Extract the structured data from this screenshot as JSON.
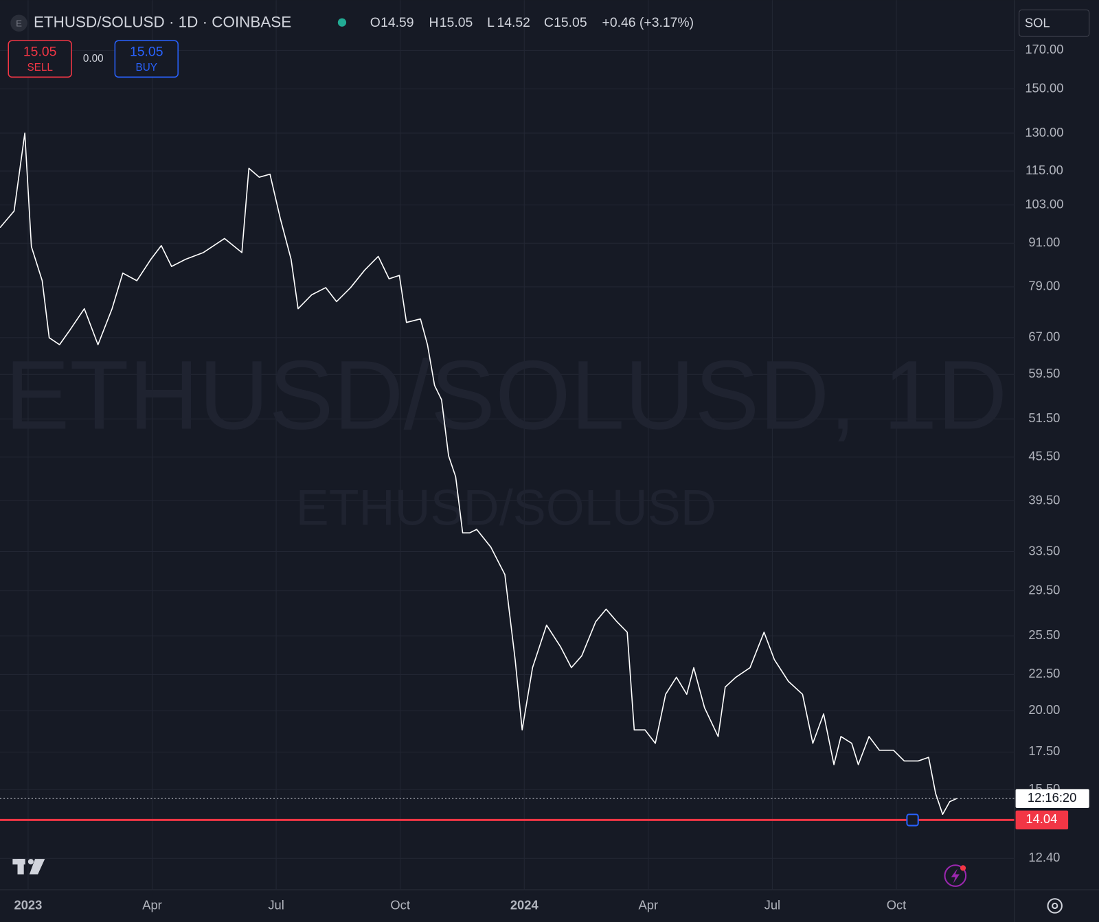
{
  "header": {
    "icon": "E",
    "title": "ETHUSD/SOLUSD · 1D · COINBASE",
    "ohlc": {
      "open_label": "O",
      "open": 14.59,
      "high_label": "H",
      "high": 15.05,
      "low_label": "L",
      "low": 14.52,
      "close_label": "C",
      "close": 15.05,
      "change": "+0.46 (+3.17%)"
    }
  },
  "trade": {
    "sell_price": 15.05,
    "sell_label": "SELL",
    "spread": "0.00",
    "buy_price": 15.05,
    "buy_label": "BUY"
  },
  "symbol_box": "SOL",
  "watermark": {
    "main": "ETHUSD/SOLUSD, 1D",
    "sub": "ETHUSD/SOLUSD"
  },
  "chart_data": {
    "type": "line",
    "color": "#ffffff",
    "log_scale": true,
    "grid": true,
    "x": [
      -0.68,
      -0.34,
      -0.08,
      0.08,
      0.34,
      0.51,
      0.76,
      1.02,
      1.36,
      1.69,
      2.03,
      2.29,
      2.63,
      2.97,
      3.22,
      3.47,
      3.81,
      4.24,
      4.75,
      5.17,
      5.34,
      5.59,
      5.85,
      6.1,
      6.36,
      6.53,
      6.86,
      7.2,
      7.46,
      7.8,
      8.14,
      8.47,
      8.73,
      8.98,
      9.15,
      9.49,
      9.66,
      9.83,
      10.0,
      10.17,
      10.34,
      10.51,
      10.68,
      10.85,
      11.19,
      11.53,
      11.78,
      11.95,
      12.2,
      12.54,
      12.88,
      13.14,
      13.39,
      13.73,
      13.98,
      14.24,
      14.49,
      14.66,
      14.92,
      15.17,
      15.42,
      15.68,
      15.93,
      16.1,
      16.36,
      16.69,
      16.86,
      17.12,
      17.46,
      17.8,
      18.05,
      18.39,
      18.73,
      18.98,
      19.24,
      19.49,
      19.66,
      19.92,
      20.08,
      20.34,
      20.59,
      20.93,
      21.19,
      21.53,
      21.78,
      21.95,
      22.12,
      22.29,
      22.46
    ],
    "values": [
      95.7,
      101,
      130,
      90,
      80.6,
      67,
      65.5,
      68.8,
      73.6,
      65.5,
      73.6,
      82.6,
      80.6,
      86.4,
      90.3,
      84.4,
      86.4,
      88.3,
      92.4,
      88.3,
      116,
      112.7,
      113.8,
      98.6,
      86.4,
      73.6,
      77,
      78.8,
      75.3,
      78.8,
      83.4,
      87.2,
      81.1,
      82,
      70.4,
      71.2,
      65.5,
      57.4,
      54.8,
      45.7,
      42.7,
      35.6,
      35.6,
      36,
      34,
      31.1,
      23.6,
      18.8,
      23,
      26.4,
      24.6,
      23,
      23.9,
      26.7,
      27.8,
      26.7,
      25.8,
      18.8,
      18.8,
      18,
      21.1,
      22.3,
      21.1,
      23,
      20.2,
      18.4,
      21.6,
      22.3,
      23,
      25.8,
      23.6,
      22,
      21.1,
      18,
      19.8,
      16.8,
      18.4,
      18,
      16.8,
      18.4,
      17.6,
      17.6,
      17,
      17,
      17.2,
      15.3,
      14.3,
      14.9,
      15.05
    ],
    "xlim": [
      -0.68,
      23.85
    ],
    "xticks": [
      {
        "value": 0,
        "label": "2023"
      },
      {
        "value": 3,
        "label": "Apr"
      },
      {
        "value": 6,
        "label": "Jul"
      },
      {
        "value": 9,
        "label": "Oct"
      },
      {
        "value": 12,
        "label": "2024"
      },
      {
        "value": 15,
        "label": "Apr"
      },
      {
        "value": 18,
        "label": "Jul"
      },
      {
        "value": 21,
        "label": "Oct"
      }
    ],
    "ylim": [
      11.2,
      196.5
    ],
    "yticks": [
      {
        "value": 170,
        "label": "170.00"
      },
      {
        "value": 150,
        "label": "150.00"
      },
      {
        "value": 130,
        "label": "130.00"
      },
      {
        "value": 115,
        "label": "115.00"
      },
      {
        "value": 103,
        "label": "103.00"
      },
      {
        "value": 91,
        "label": "91.00"
      },
      {
        "value": 79,
        "label": "79.00"
      },
      {
        "value": 67,
        "label": "67.00"
      },
      {
        "value": 59.5,
        "label": "59.50"
      },
      {
        "value": 51.5,
        "label": "51.50"
      },
      {
        "value": 45.5,
        "label": "45.50"
      },
      {
        "value": 39.5,
        "label": "39.50"
      },
      {
        "value": 33.5,
        "label": "33.50"
      },
      {
        "value": 29.5,
        "label": "29.50"
      },
      {
        "value": 25.5,
        "label": "25.50"
      },
      {
        "value": 22.5,
        "label": "22.50"
      },
      {
        "value": 20,
        "label": "20.00"
      },
      {
        "value": 17.5,
        "label": "17.50"
      },
      {
        "value": 15.5,
        "label": "15.50"
      },
      {
        "value": 12.4,
        "label": "12.40"
      }
    ],
    "countdown": "12:16:20",
    "alert_line": 14.04
  }
}
